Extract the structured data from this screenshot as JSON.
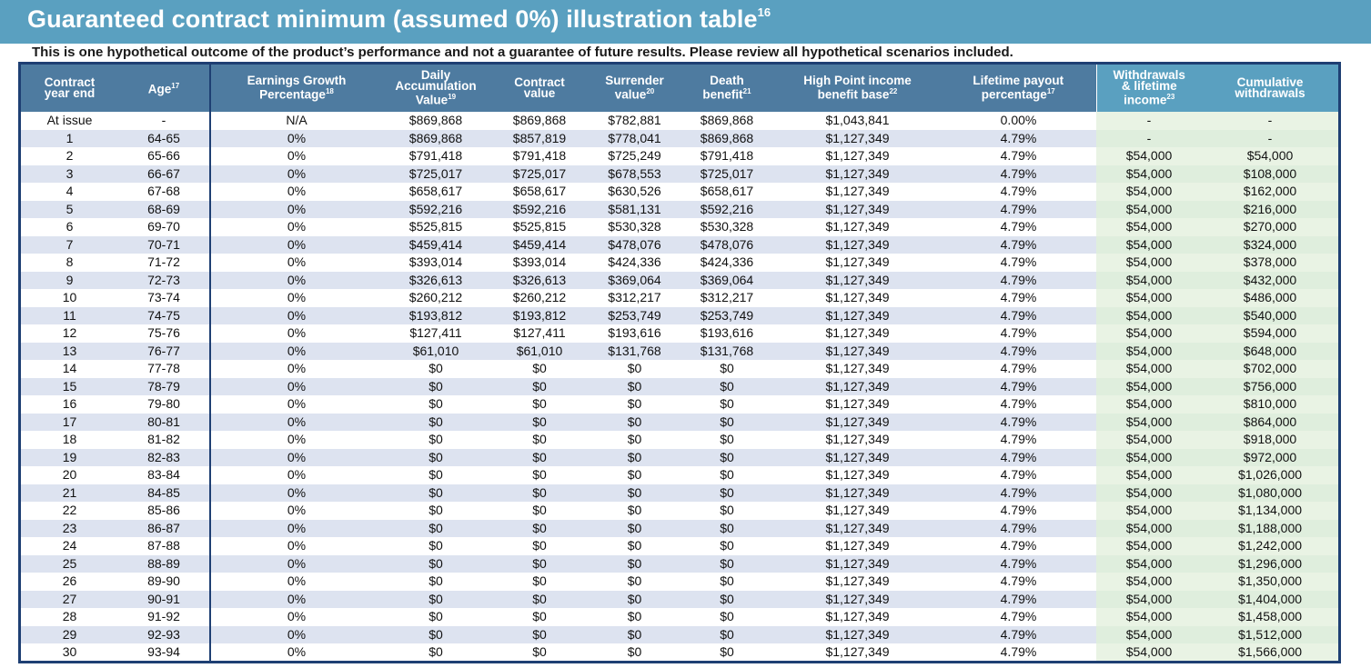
{
  "title": "Guaranteed contract minimum (assumed 0%) illustration table",
  "title_note": "16",
  "subtitle": "This is one hypothetical outcome of the product’s performance and not a guarantee of future results. Please review all hypothetical scenarios included.",
  "columns": [
    {
      "line1": "Contract",
      "line2": "year end",
      "note": ""
    },
    {
      "line1": "Age",
      "line2": "",
      "note": "17"
    },
    {
      "line1": "Earnings Growth",
      "line2": "Percentage",
      "note": "18"
    },
    {
      "line1": "Daily",
      "line2": "Accumulation",
      "line3": "Value",
      "note": "19"
    },
    {
      "line1": "Contract",
      "line2": "value",
      "note": ""
    },
    {
      "line1": "Surrender",
      "line2": "value",
      "note": "20"
    },
    {
      "line1": "Death",
      "line2": "benefit",
      "note": "21"
    },
    {
      "line1": "High Point income",
      "line2": "benefit base",
      "note": "22"
    },
    {
      "line1": "Lifetime payout",
      "line2": "percentage",
      "note": "17"
    },
    {
      "line1": "Withdrawals",
      "line2": "& lifetime",
      "line3": "income",
      "note": "23"
    },
    {
      "line1": "Cumulative",
      "line2": "withdrawals",
      "note": ""
    }
  ],
  "rows": [
    [
      "At issue",
      "-",
      "N/A",
      "$869,868",
      "$869,868",
      "$782,881",
      "$869,868",
      "$1,043,841",
      "0.00%",
      "-",
      "-"
    ],
    [
      "1",
      "64-65",
      "0%",
      "$869,868",
      "$857,819",
      "$778,041",
      "$869,868",
      "$1,127,349",
      "4.79%",
      "-",
      "-"
    ],
    [
      "2",
      "65-66",
      "0%",
      "$791,418",
      "$791,418",
      "$725,249",
      "$791,418",
      "$1,127,349",
      "4.79%",
      "$54,000",
      "$54,000"
    ],
    [
      "3",
      "66-67",
      "0%",
      "$725,017",
      "$725,017",
      "$678,553",
      "$725,017",
      "$1,127,349",
      "4.79%",
      "$54,000",
      "$108,000"
    ],
    [
      "4",
      "67-68",
      "0%",
      "$658,617",
      "$658,617",
      "$630,526",
      "$658,617",
      "$1,127,349",
      "4.79%",
      "$54,000",
      "$162,000"
    ],
    [
      "5",
      "68-69",
      "0%",
      "$592,216",
      "$592,216",
      "$581,131",
      "$592,216",
      "$1,127,349",
      "4.79%",
      "$54,000",
      "$216,000"
    ],
    [
      "6",
      "69-70",
      "0%",
      "$525,815",
      "$525,815",
      "$530,328",
      "$530,328",
      "$1,127,349",
      "4.79%",
      "$54,000",
      "$270,000"
    ],
    [
      "7",
      "70-71",
      "0%",
      "$459,414",
      "$459,414",
      "$478,076",
      "$478,076",
      "$1,127,349",
      "4.79%",
      "$54,000",
      "$324,000"
    ],
    [
      "8",
      "71-72",
      "0%",
      "$393,014",
      "$393,014",
      "$424,336",
      "$424,336",
      "$1,127,349",
      "4.79%",
      "$54,000",
      "$378,000"
    ],
    [
      "9",
      "72-73",
      "0%",
      "$326,613",
      "$326,613",
      "$369,064",
      "$369,064",
      "$1,127,349",
      "4.79%",
      "$54,000",
      "$432,000"
    ],
    [
      "10",
      "73-74",
      "0%",
      "$260,212",
      "$260,212",
      "$312,217",
      "$312,217",
      "$1,127,349",
      "4.79%",
      "$54,000",
      "$486,000"
    ],
    [
      "11",
      "74-75",
      "0%",
      "$193,812",
      "$193,812",
      "$253,749",
      "$253,749",
      "$1,127,349",
      "4.79%",
      "$54,000",
      "$540,000"
    ],
    [
      "12",
      "75-76",
      "0%",
      "$127,411",
      "$127,411",
      "$193,616",
      "$193,616",
      "$1,127,349",
      "4.79%",
      "$54,000",
      "$594,000"
    ],
    [
      "13",
      "76-77",
      "0%",
      "$61,010",
      "$61,010",
      "$131,768",
      "$131,768",
      "$1,127,349",
      "4.79%",
      "$54,000",
      "$648,000"
    ],
    [
      "14",
      "77-78",
      "0%",
      "$0",
      "$0",
      "$0",
      "$0",
      "$1,127,349",
      "4.79%",
      "$54,000",
      "$702,000"
    ],
    [
      "15",
      "78-79",
      "0%",
      "$0",
      "$0",
      "$0",
      "$0",
      "$1,127,349",
      "4.79%",
      "$54,000",
      "$756,000"
    ],
    [
      "16",
      "79-80",
      "0%",
      "$0",
      "$0",
      "$0",
      "$0",
      "$1,127,349",
      "4.79%",
      "$54,000",
      "$810,000"
    ],
    [
      "17",
      "80-81",
      "0%",
      "$0",
      "$0",
      "$0",
      "$0",
      "$1,127,349",
      "4.79%",
      "$54,000",
      "$864,000"
    ],
    [
      "18",
      "81-82",
      "0%",
      "$0",
      "$0",
      "$0",
      "$0",
      "$1,127,349",
      "4.79%",
      "$54,000",
      "$918,000"
    ],
    [
      "19",
      "82-83",
      "0%",
      "$0",
      "$0",
      "$0",
      "$0",
      "$1,127,349",
      "4.79%",
      "$54,000",
      "$972,000"
    ],
    [
      "20",
      "83-84",
      "0%",
      "$0",
      "$0",
      "$0",
      "$0",
      "$1,127,349",
      "4.79%",
      "$54,000",
      "$1,026,000"
    ],
    [
      "21",
      "84-85",
      "0%",
      "$0",
      "$0",
      "$0",
      "$0",
      "$1,127,349",
      "4.79%",
      "$54,000",
      "$1,080,000"
    ],
    [
      "22",
      "85-86",
      "0%",
      "$0",
      "$0",
      "$0",
      "$0",
      "$1,127,349",
      "4.79%",
      "$54,000",
      "$1,134,000"
    ],
    [
      "23",
      "86-87",
      "0%",
      "$0",
      "$0",
      "$0",
      "$0",
      "$1,127,349",
      "4.79%",
      "$54,000",
      "$1,188,000"
    ],
    [
      "24",
      "87-88",
      "0%",
      "$0",
      "$0",
      "$0",
      "$0",
      "$1,127,349",
      "4.79%",
      "$54,000",
      "$1,242,000"
    ],
    [
      "25",
      "88-89",
      "0%",
      "$0",
      "$0",
      "$0",
      "$0",
      "$1,127,349",
      "4.79%",
      "$54,000",
      "$1,296,000"
    ],
    [
      "26",
      "89-90",
      "0%",
      "$0",
      "$0",
      "$0",
      "$0",
      "$1,127,349",
      "4.79%",
      "$54,000",
      "$1,350,000"
    ],
    [
      "27",
      "90-91",
      "0%",
      "$0",
      "$0",
      "$0",
      "$0",
      "$1,127,349",
      "4.79%",
      "$54,000",
      "$1,404,000"
    ],
    [
      "28",
      "91-92",
      "0%",
      "$0",
      "$0",
      "$0",
      "$0",
      "$1,127,349",
      "4.79%",
      "$54,000",
      "$1,458,000"
    ],
    [
      "29",
      "92-93",
      "0%",
      "$0",
      "$0",
      "$0",
      "$0",
      "$1,127,349",
      "4.79%",
      "$54,000",
      "$1,512,000"
    ],
    [
      "30",
      "93-94",
      "0%",
      "$0",
      "$0",
      "$0",
      "$0",
      "$1,127,349",
      "4.79%",
      "$54,000",
      "$1,566,000"
    ]
  ],
  "colors": {
    "title_bar": "#5aa0c0",
    "header_dark": "#4e7ba0",
    "header_light": "#5aa0c0",
    "frame": "#1e3f73",
    "row_alt": "#dde3f0",
    "green_col": "#e9f3e4",
    "green_col_alt": "#dfeedd"
  }
}
